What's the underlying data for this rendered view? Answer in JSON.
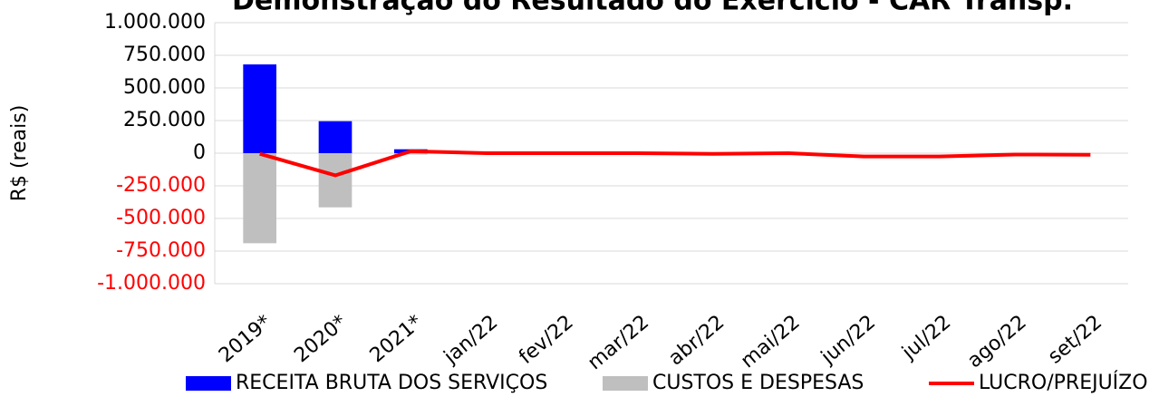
{
  "chart_data": {
    "type": "bar-line",
    "title": "Demonstração do Resultado do Exercício - CAR Transp.",
    "y_label": "R$ (reais)",
    "categories": [
      "2019*",
      "2020*",
      "2021*",
      "jan/22",
      "fev/22",
      "mar/22",
      "abr/22",
      "mai/22",
      "jun/22",
      "jul/22",
      "ago/22",
      "set/22"
    ],
    "series": [
      {
        "name": "RECEITA BRUTA DOS SERVIÇOS",
        "type": "bar",
        "color": "#0000ff",
        "values": [
          680000,
          245000,
          30000,
          0,
          0,
          0,
          0,
          0,
          0,
          0,
          0,
          0
        ]
      },
      {
        "name": "CUSTOS E DESPESAS",
        "type": "bar",
        "color": "#bfbfbf",
        "values": [
          -690000,
          -415000,
          -10000,
          0,
          0,
          0,
          0,
          0,
          0,
          0,
          0,
          0
        ]
      },
      {
        "name": "LUCRO/PREJUÍZO",
        "type": "line",
        "color": "#ff0000",
        "values": [
          -5000,
          -170000,
          15000,
          0,
          0,
          0,
          -5000,
          0,
          -25000,
          -25000,
          -10000,
          -12000
        ]
      }
    ],
    "ylim": [
      -1000000,
      1000000
    ],
    "yticks": [
      {
        "value": -1000000,
        "label": "-1.000.000"
      },
      {
        "value": -750000,
        "label": "-750.000"
      },
      {
        "value": -500000,
        "label": "-500.000"
      },
      {
        "value": -250000,
        "label": "-250.000"
      },
      0,
      {
        "value": 250000,
        "label": "250.000"
      },
      {
        "value": 500000,
        "label": "500.000"
      },
      {
        "value": 750000,
        "label": "750.000"
      },
      {
        "value": 1000000,
        "label": "1.000.000"
      }
    ],
    "negative_tick_color": "#ff0000",
    "grid": true,
    "legend": "bottom"
  }
}
